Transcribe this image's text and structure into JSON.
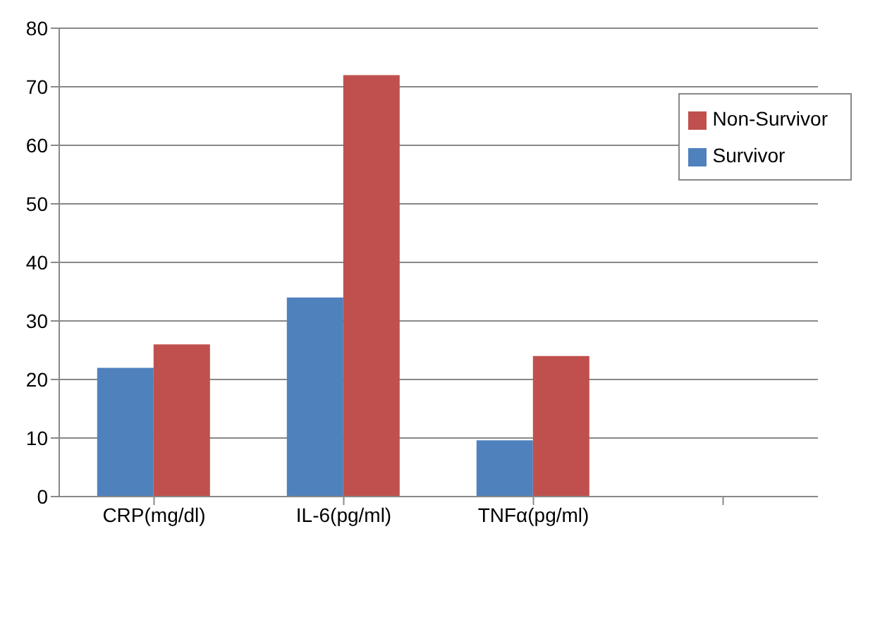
{
  "chart_data": {
    "type": "bar",
    "categories": [
      "CRP(mg/dl)",
      "IL-6(pg/ml)",
      "TNFα(pg/ml)",
      null
    ],
    "series": [
      {
        "name": "Survivor",
        "color": "#4f81bd",
        "values": [
          22,
          34,
          9.6,
          null
        ]
      },
      {
        "name": "Non-Survivor",
        "color": "#c0504d",
        "values": [
          26,
          72,
          24,
          null
        ]
      }
    ],
    "ylim": [
      0,
      80
    ],
    "yticks": [
      0,
      10,
      20,
      30,
      40,
      50,
      60,
      70,
      80
    ],
    "grid": "y",
    "legend": "top right"
  }
}
